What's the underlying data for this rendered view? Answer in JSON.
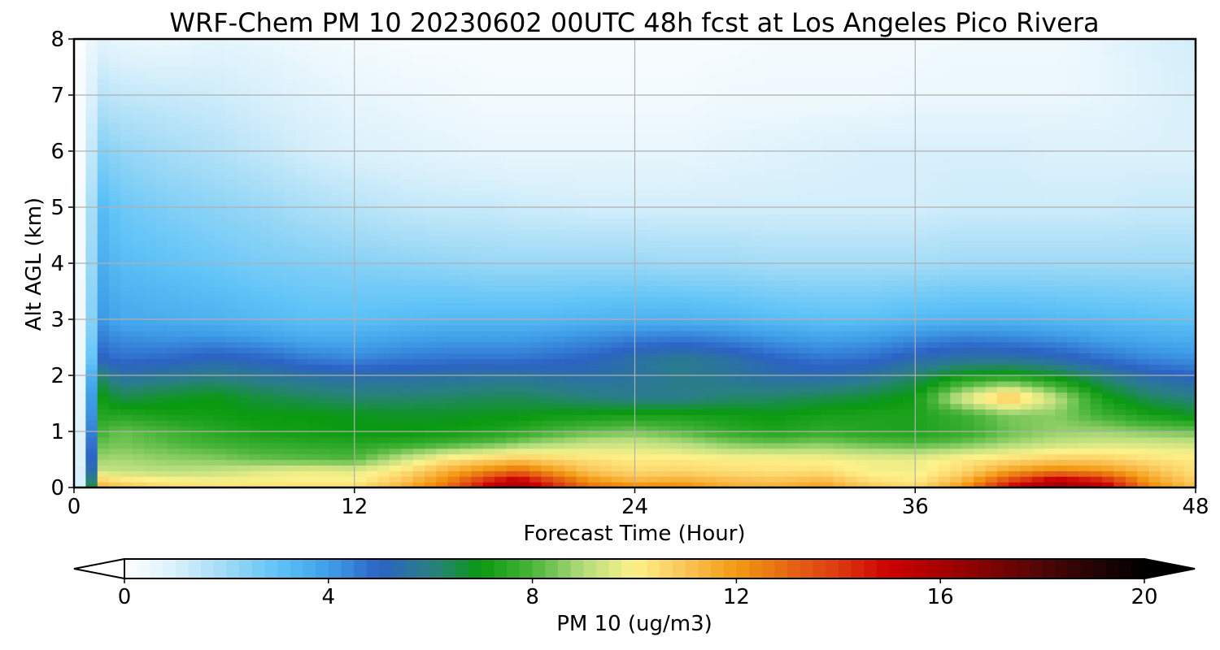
{
  "chart_data": {
    "type": "heatmap",
    "title": "WRF-Chem PM 10  20230602 00UTC 48h fcst at Los Angeles Pico Rivera",
    "xlabel": "Forecast Time (Hour)",
    "ylabel": "Alt AGL (km)",
    "xlim": [
      0,
      48
    ],
    "ylim": [
      0,
      8
    ],
    "xticks": [
      0,
      12,
      24,
      36,
      48
    ],
    "yticks": [
      0,
      1,
      2,
      3,
      4,
      5,
      6,
      7,
      8
    ],
    "grid": true,
    "colorbar": {
      "label": "PM 10  (ug/m3)",
      "orientation": "horizontal",
      "range": [
        0,
        20
      ],
      "ticks": [
        0,
        4,
        8,
        12,
        16,
        20
      ],
      "extend": "both",
      "stops": [
        {
          "value": 0,
          "color": "#ffffff"
        },
        {
          "value": 1,
          "color": "#d8f0fb"
        },
        {
          "value": 2,
          "color": "#9fdaf6"
        },
        {
          "value": 3,
          "color": "#5fc3f7"
        },
        {
          "value": 4,
          "color": "#3f9ee8"
        },
        {
          "value": 5,
          "color": "#2c63c5"
        },
        {
          "value": 6,
          "color": "#2a7f84"
        },
        {
          "value": 7,
          "color": "#0a9a10"
        },
        {
          "value": 8,
          "color": "#4ab53a"
        },
        {
          "value": 9,
          "color": "#b3dc7c"
        },
        {
          "value": 10,
          "color": "#fdf28a"
        },
        {
          "value": 11,
          "color": "#fbc457"
        },
        {
          "value": 12,
          "color": "#f39a12"
        },
        {
          "value": 13,
          "color": "#e66812"
        },
        {
          "value": 14,
          "color": "#dd3a12"
        },
        {
          "value": 15,
          "color": "#cc0000"
        },
        {
          "value": 16,
          "color": "#a80000"
        },
        {
          "value": 17,
          "color": "#7e0303"
        },
        {
          "value": 18,
          "color": "#4f0606"
        },
        {
          "value": 19,
          "color": "#250303"
        },
        {
          "value": 20,
          "color": "#000000"
        }
      ]
    },
    "field": {
      "times_hour": [
        0,
        0.5,
        1,
        2,
        4,
        6,
        8,
        10,
        12,
        14,
        16,
        18,
        19,
        20,
        22,
        24,
        26,
        28,
        30,
        32,
        34,
        36,
        38,
        40,
        42,
        44,
        46,
        48
      ],
      "alt_km": [
        0,
        0.1,
        0.3,
        0.5,
        0.8,
        1.0,
        1.3,
        1.6,
        2.0,
        2.3,
        2.7,
        3.0,
        4.0,
        5.0,
        6.0,
        7.0,
        8.0
      ],
      "values": [
        [
          0.5,
          1.5,
          11.5,
          11,
          10.5,
          10.5,
          10.5,
          10.5,
          10.5,
          11.5,
          13,
          15.5,
          16,
          15,
          13,
          12.5,
          12.5,
          11.5,
          11.5,
          11.8,
          11,
          10.5,
          12,
          15,
          16.5,
          15.5,
          12.5,
          11
        ],
        [
          0.5,
          1.5,
          11,
          10.5,
          10.2,
          10,
          10,
          10,
          10,
          11,
          12.5,
          15,
          15.8,
          14.5,
          12.3,
          11.5,
          11.7,
          11.3,
          11.1,
          11.5,
          10.5,
          10.2,
          11.5,
          14,
          16,
          15,
          12,
          10.8
        ],
        [
          0.5,
          1.5,
          9.3,
          9.2,
          9.1,
          9.2,
          9.6,
          9.8,
          9.7,
          10.3,
          11.5,
          12.5,
          13,
          12.3,
          11,
          10.5,
          10.6,
          10.4,
          10.3,
          10.4,
          9.9,
          9.8,
          10.5,
          11.8,
          12.5,
          12.1,
          11.2,
          10.3
        ],
        [
          0.5,
          1.3,
          8.8,
          8.9,
          8.7,
          8.6,
          8.3,
          8.2,
          8.1,
          9.3,
          10.3,
          10.8,
          11,
          10.8,
          10.4,
          10.2,
          10.2,
          10.1,
          10.1,
          10,
          9.8,
          9.8,
          10.2,
          10.5,
          10.8,
          10.8,
          10.4,
          10.2
        ],
        [
          0.5,
          1.3,
          8.2,
          8.4,
          8.1,
          7.8,
          7.6,
          7.5,
          7.4,
          7.5,
          7.8,
          8.2,
          8.5,
          8.8,
          9.2,
          9.3,
          9,
          8.5,
          8.3,
          8.5,
          8.2,
          8,
          8.3,
          8.8,
          9.2,
          9.4,
          9.4,
          9.3
        ],
        [
          0.5,
          1.2,
          7.8,
          8.3,
          7.9,
          7.5,
          7.2,
          7.1,
          7,
          7,
          7.1,
          7.3,
          7.5,
          7.8,
          8.2,
          8.4,
          8.1,
          7.6,
          7.3,
          7.6,
          7.4,
          7.3,
          7.6,
          8.3,
          8.7,
          8.8,
          8.5,
          8.3
        ],
        [
          0.5,
          1,
          7.4,
          7.4,
          7.2,
          7.1,
          7,
          7,
          6.9,
          6.8,
          6.8,
          6.9,
          6.9,
          7,
          7.1,
          7.2,
          7.2,
          7.1,
          7,
          7.2,
          7.3,
          7.3,
          7.8,
          8.5,
          8.6,
          7.8,
          7.2,
          6.8
        ],
        [
          0.4,
          0.9,
          7.2,
          6.5,
          6.8,
          7,
          6.6,
          6.4,
          6.2,
          6.2,
          6.3,
          6.4,
          6.4,
          6.3,
          6.1,
          5.9,
          5.9,
          6.2,
          6.3,
          6.5,
          6.7,
          7.1,
          9.5,
          11.2,
          9.2,
          7.2,
          6.4,
          6
        ],
        [
          0.4,
          0.8,
          6.3,
          5.5,
          5.7,
          5.9,
          5.7,
          5.5,
          5.4,
          5.4,
          5.5,
          5.6,
          5.6,
          5.5,
          5.4,
          5.6,
          5.9,
          5.7,
          5.4,
          5.3,
          5.6,
          6.2,
          7,
          7.2,
          6.8,
          6,
          5.3,
          5
        ],
        [
          0.3,
          0.7,
          5.1,
          4.8,
          4.9,
          5.2,
          5,
          4.6,
          4.4,
          4.6,
          4.7,
          4.7,
          4.7,
          4.8,
          5,
          5.5,
          5.8,
          5.5,
          5,
          4.7,
          4.8,
          5.3,
          5.6,
          5.6,
          5.3,
          4.8,
          4.4,
          4.2
        ],
        [
          0.3,
          0.6,
          4.6,
          4.2,
          4.1,
          4.1,
          3.9,
          3.6,
          3.6,
          3.8,
          3.9,
          3.9,
          3.9,
          4,
          4.2,
          4.4,
          4.5,
          4.3,
          4,
          3.8,
          3.9,
          4.2,
          4.4,
          4.3,
          4.1,
          3.8,
          3.6,
          3.5
        ],
        [
          0.3,
          0.6,
          4.2,
          3.7,
          3.6,
          3.5,
          3.3,
          3.1,
          3.1,
          3.2,
          3.3,
          3.3,
          3.3,
          3.3,
          3.4,
          3.5,
          3.5,
          3.4,
          3.2,
          3.1,
          3.1,
          3.3,
          3.4,
          3.4,
          3.3,
          3.2,
          3.1,
          3
        ],
        [
          0.2,
          0.5,
          3.7,
          3.2,
          3,
          2.8,
          2.6,
          2.5,
          2.4,
          2.3,
          2.2,
          2.1,
          2.1,
          2.1,
          2.1,
          2.1,
          2,
          2,
          1.9,
          1.9,
          1.9,
          1.9,
          2,
          2,
          2,
          2,
          2,
          2
        ],
        [
          0.2,
          0.4,
          3.3,
          2.8,
          2.5,
          2.3,
          2.1,
          1.8,
          1.6,
          1.4,
          1.3,
          1.3,
          1.2,
          1.2,
          1.1,
          1.1,
          1.1,
          1.1,
          1.1,
          1.1,
          1.1,
          1.1,
          1.2,
          1.2,
          1.2,
          1.2,
          1.3,
          1.3
        ],
        [
          0.1,
          0.3,
          2.5,
          2.2,
          1.9,
          1.7,
          1.4,
          1.1,
          0.9,
          0.8,
          0.7,
          0.6,
          0.6,
          0.6,
          0.6,
          0.6,
          0.6,
          0.7,
          0.8,
          0.9,
          1,
          1,
          1,
          1,
          0.9,
          0.9,
          0.9,
          0.9
        ],
        [
          0.1,
          0.3,
          1.6,
          1.4,
          1.3,
          1.2,
          1,
          0.8,
          0.6,
          0.5,
          0.4,
          0.3,
          0.3,
          0.3,
          0.3,
          0.3,
          0.3,
          0.4,
          0.4,
          0.4,
          0.4,
          0.5,
          0.5,
          0.5,
          0.5,
          0.6,
          0.8,
          1
        ],
        [
          0.1,
          0.2,
          0.8,
          0.6,
          0.5,
          0.7,
          0.6,
          0.4,
          0.3,
          0.2,
          0.2,
          0.2,
          0.2,
          0.2,
          0.2,
          0.2,
          0.2,
          0.2,
          0.3,
          0.3,
          0.3,
          0.3,
          0.4,
          0.4,
          0.4,
          0.6,
          0.9,
          1.1
        ]
      ]
    }
  }
}
